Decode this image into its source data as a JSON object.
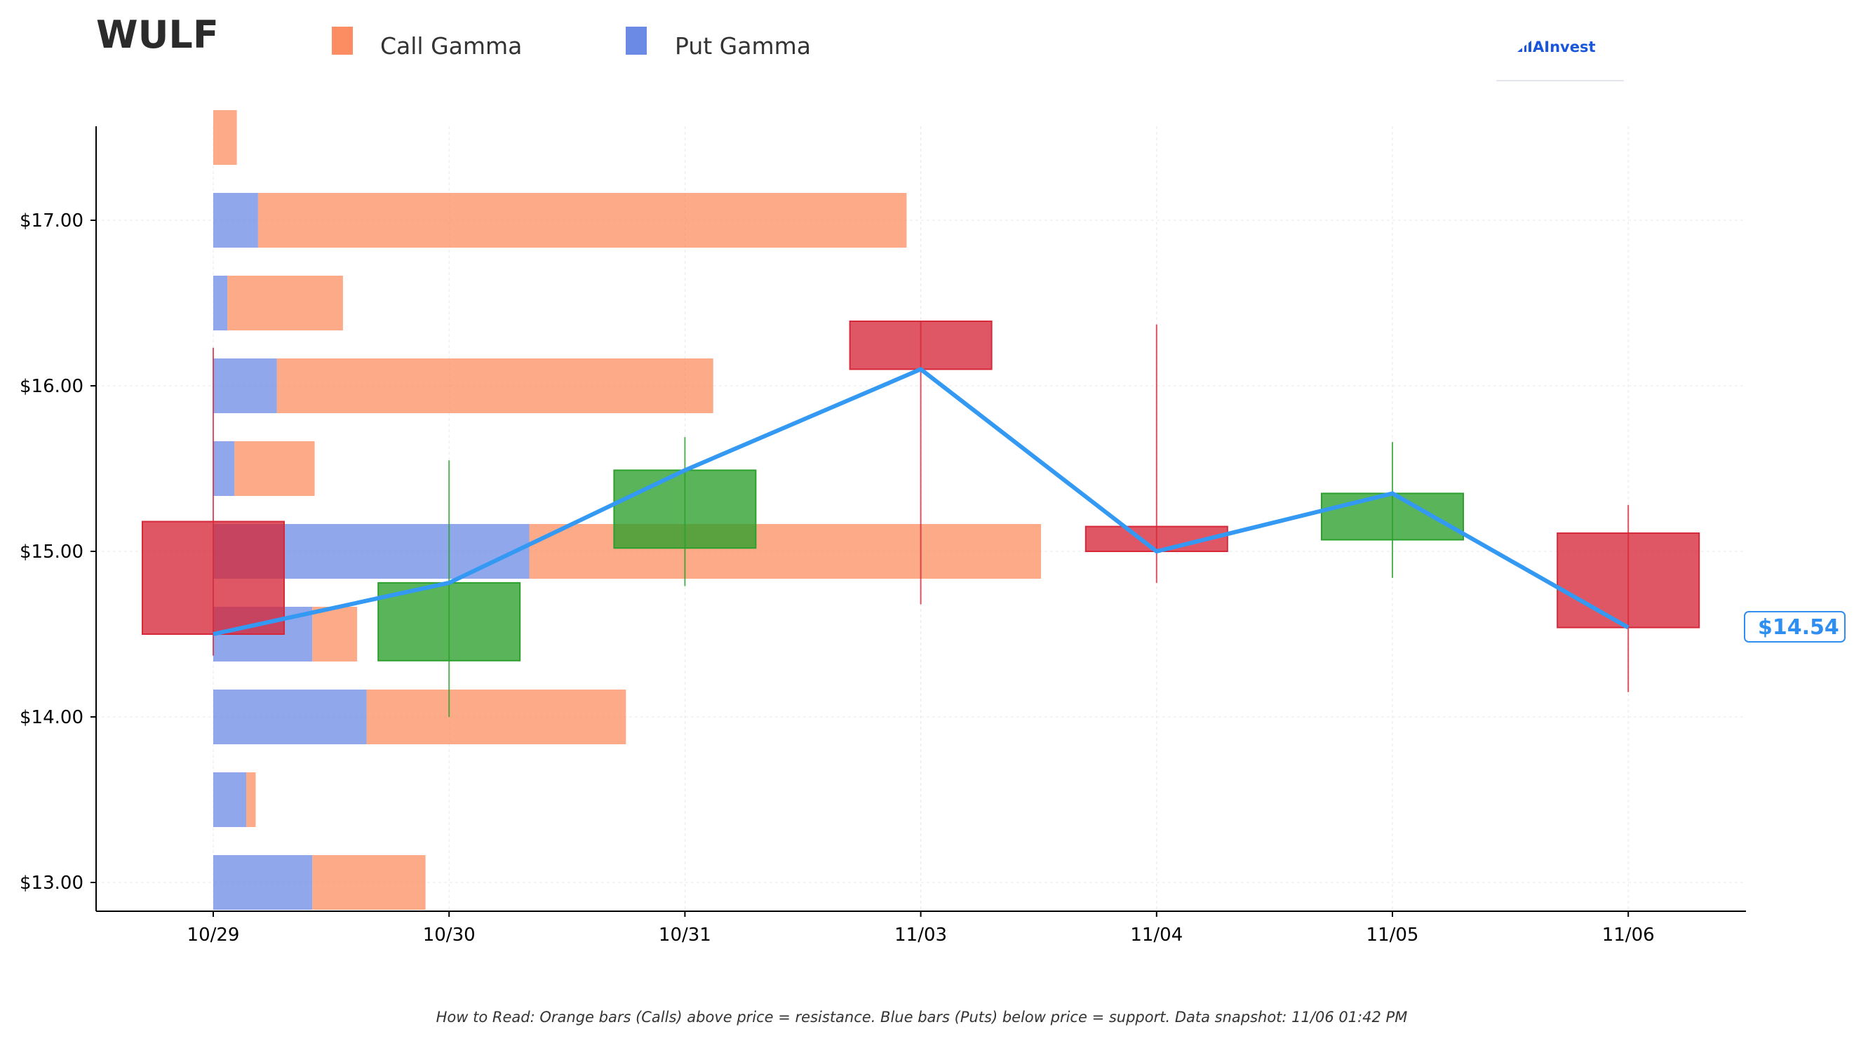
{
  "header": {
    "ticker": "WULF",
    "legend": [
      {
        "label": "Call Gamma",
        "color": "#fc8d62"
      },
      {
        "label": "Put Gamma",
        "color": "#6b8ae6"
      }
    ],
    "brand": "AInvest"
  },
  "colors": {
    "call": "#fc8d62",
    "put": "#6b8ae6",
    "up": "#2ca02c",
    "down": "#d62839",
    "price_line": "#3399f3",
    "axis": "#000000",
    "grid": "#e8e8e8"
  },
  "price_tag": "$14.54",
  "footer": "How to Read: Orange bars (Calls) above price = resistance. Blue bars (Puts) below price = support. Data snapshot: 11/06 01:42 PM",
  "chart_data": {
    "type": "bar",
    "title": "WULF",
    "categories": [
      "10/29",
      "10/30",
      "10/31",
      "11/03",
      "11/04",
      "11/05",
      "11/06"
    ],
    "ylim": [
      12.83,
      17.57
    ],
    "y_ticks": [
      13.0,
      14.0,
      15.0,
      16.0,
      17.0
    ],
    "y_tick_labels": [
      "$13.00",
      "$14.00",
      "$15.00",
      "$16.00",
      "$17.00"
    ],
    "grid": true,
    "legend_position": "top-left",
    "gamma_profile": {
      "x_unit": "date-axis offset from 10/29 (1.0 = one trading day)",
      "strikes": [
        13.0,
        13.5,
        14.0,
        14.5,
        15.0,
        15.5,
        16.0,
        16.5,
        17.0,
        17.5
      ],
      "series": [
        {
          "name": "Put Gamma",
          "values": [
            0.42,
            0.14,
            0.65,
            0.42,
            1.34,
            0.09,
            0.27,
            0.06,
            0.19,
            0.0
          ]
        },
        {
          "name": "Call Gamma",
          "values": [
            0.48,
            0.04,
            1.1,
            0.19,
            2.17,
            0.34,
            1.85,
            0.49,
            2.75,
            0.1
          ]
        }
      ]
    },
    "candles": [
      {
        "date": "10/29",
        "open": 15.18,
        "high": 16.23,
        "low": 14.37,
        "close": 14.5
      },
      {
        "date": "10/30",
        "open": 14.34,
        "high": 15.55,
        "low": 14.0,
        "close": 14.81
      },
      {
        "date": "10/31",
        "open": 15.02,
        "high": 15.69,
        "low": 14.79,
        "close": 15.49
      },
      {
        "date": "11/03",
        "open": 16.39,
        "high": 16.39,
        "low": 14.68,
        "close": 16.1
      },
      {
        "date": "11/04",
        "open": 15.15,
        "high": 16.37,
        "low": 14.81,
        "close": 15.0
      },
      {
        "date": "11/05",
        "open": 15.07,
        "high": 15.66,
        "low": 14.84,
        "close": 15.35
      },
      {
        "date": "11/06",
        "open": 15.11,
        "high": 15.28,
        "low": 14.15,
        "close": 14.54
      }
    ],
    "price_line": {
      "name": "Close",
      "values": [
        14.5,
        14.81,
        15.49,
        16.1,
        15.0,
        15.35,
        14.54
      ]
    },
    "last_price": 14.54
  }
}
